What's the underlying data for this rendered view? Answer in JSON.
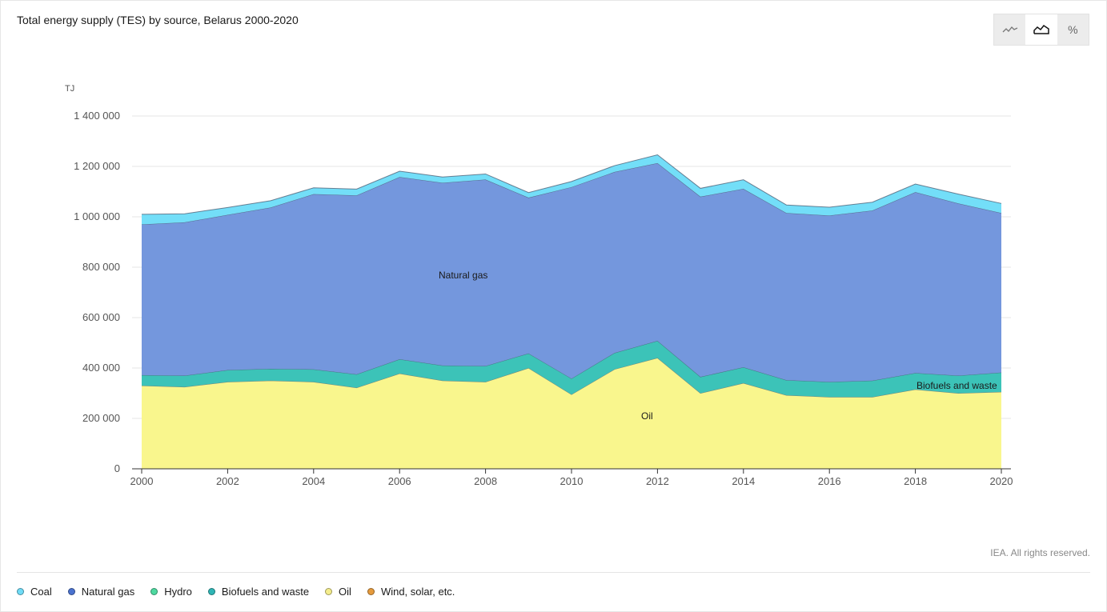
{
  "title": "Total energy supply (TES) by source, Belarus 2000-2020",
  "view_toggle": {
    "options": [
      {
        "name": "line-chart-icon",
        "active": false
      },
      {
        "name": "area-chart-icon",
        "active": true
      },
      {
        "name": "percent-icon",
        "label": "%",
        "active": false
      }
    ]
  },
  "credit": "IEA. All rights reserved.",
  "legend": [
    {
      "label": "Coal",
      "color": "#6fdcf7"
    },
    {
      "label": "Natural gas",
      "color": "#4a72cf"
    },
    {
      "label": "Hydro",
      "color": "#4ed9a0"
    },
    {
      "label": "Biofuels and waste",
      "color": "#2fb5b5"
    },
    {
      "label": "Oil",
      "color": "#f4ed8c"
    },
    {
      "label": "Wind, solar, etc.",
      "color": "#e59a3c"
    }
  ],
  "chart_data": {
    "type": "area",
    "stacked": true,
    "unit": "TJ",
    "x": [
      2000,
      2001,
      2002,
      2003,
      2004,
      2005,
      2006,
      2007,
      2008,
      2009,
      2010,
      2011,
      2012,
      2013,
      2014,
      2015,
      2016,
      2017,
      2018,
      2019,
      2020
    ],
    "x_ticks": [
      "2000",
      "2002",
      "2004",
      "2006",
      "2008",
      "2010",
      "2012",
      "2014",
      "2016",
      "2018",
      "2020"
    ],
    "y_ticks": [
      "0",
      "200 000",
      "400 000",
      "600 000",
      "800 000",
      "1 000 000",
      "1 200 000",
      "1 400 000"
    ],
    "ylim": [
      0,
      1400000
    ],
    "grid": true,
    "area_labels": [
      "Natural gas",
      "Biofuels and waste",
      "Oil"
    ],
    "series": [
      {
        "name": "Oil",
        "color": "#f9f68d",
        "values": [
          330000,
          325000,
          345000,
          350000,
          345000,
          322000,
          378000,
          350000,
          345000,
          400000,
          295000,
          395000,
          440000,
          300000,
          340000,
          292000,
          285000,
          285000,
          315000,
          300000,
          305000
        ]
      },
      {
        "name": "Biofuels and waste",
        "color": "#3cc3b8",
        "values": [
          42000,
          45000,
          47000,
          47000,
          50000,
          53000,
          57000,
          60000,
          63000,
          58000,
          63000,
          65000,
          68000,
          65000,
          63000,
          60000,
          60000,
          65000,
          65000,
          70000,
          77000
        ]
      },
      {
        "name": "Natural gas",
        "color": "#7497dd",
        "values": [
          598000,
          608000,
          616000,
          640000,
          695000,
          710000,
          723000,
          725000,
          740000,
          618000,
          760000,
          718000,
          705000,
          715000,
          708000,
          663000,
          660000,
          675000,
          718000,
          683000,
          633000
        ]
      },
      {
        "name": "Coal",
        "color": "#73def8",
        "values": [
          40000,
          34000,
          29000,
          27000,
          25000,
          25000,
          23000,
          23000,
          22000,
          20000,
          22000,
          25000,
          33000,
          33000,
          36000,
          32000,
          33000,
          33000,
          32000,
          37000,
          38000
        ]
      }
    ]
  }
}
